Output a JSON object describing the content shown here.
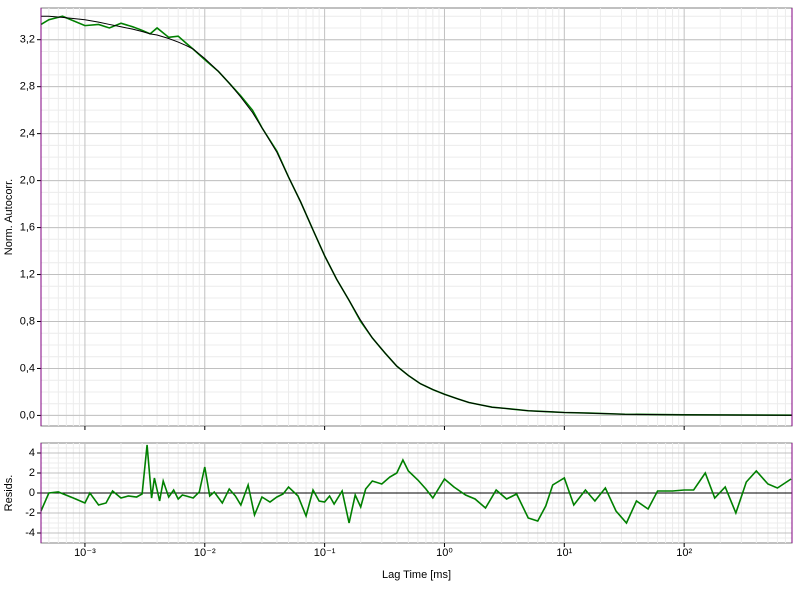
{
  "chart_data": [
    {
      "type": "line",
      "ylabel": "Norm. Autocorr.",
      "xscale": "log",
      "grid": true,
      "xlim": [
        0.00043,
        794
      ],
      "xticks": [
        0.001,
        0.01,
        0.1,
        1,
        10,
        100
      ],
      "ylim": [
        -0.09,
        3.47
      ],
      "yticks": [
        {
          "value": 0,
          "label": "0,0"
        },
        {
          "value": 0.4,
          "label": "0,4"
        },
        {
          "value": 0.8,
          "label": "0,8"
        },
        {
          "value": 1.2,
          "label": "1,2"
        },
        {
          "value": 1.6,
          "label": "1,6"
        },
        {
          "value": 2.0,
          "label": "2,0"
        },
        {
          "value": 2.4,
          "label": "2,4"
        },
        {
          "value": 2.8,
          "label": "2,8"
        },
        {
          "value": 3.2,
          "label": "3,2"
        }
      ],
      "x": [
        0.00043,
        0.0005,
        0.00065,
        0.001,
        0.0013,
        0.0016,
        0.002,
        0.0025,
        0.003,
        0.0035,
        0.004,
        0.005,
        0.006,
        0.007,
        0.008,
        0.01,
        0.013,
        0.016,
        0.02,
        0.025,
        0.03,
        0.04,
        0.05,
        0.063,
        0.08,
        0.1,
        0.126,
        0.16,
        0.2,
        0.25,
        0.32,
        0.4,
        0.5,
        0.63,
        0.8,
        1,
        1.3,
        1.6,
        2,
        2.5,
        3.2,
        4,
        5,
        6.3,
        8,
        10,
        16,
        32,
        100,
        794
      ],
      "series": [
        {
          "color": "#008000",
          "values": [
            3.33,
            3.37,
            3.4,
            3.32,
            3.33,
            3.3,
            3.34,
            3.31,
            3.28,
            3.25,
            3.3,
            3.22,
            3.23,
            3.17,
            3.12,
            3.03,
            2.93,
            2.83,
            2.72,
            2.6,
            2.45,
            2.25,
            2.03,
            1.82,
            1.58,
            1.36,
            1.16,
            0.98,
            0.8,
            0.66,
            0.53,
            0.42,
            0.34,
            0.27,
            0.22,
            0.18,
            0.14,
            0.11,
            0.09,
            0.07,
            0.06,
            0.05,
            0.04,
            0.035,
            0.03,
            0.025,
            0.02,
            0.01,
            0.005,
            0.002
          ]
        },
        {
          "color": "#000000",
          "values": [
            3.4,
            3.4,
            3.39,
            3.37,
            3.35,
            3.33,
            3.31,
            3.29,
            3.27,
            3.25,
            3.24,
            3.21,
            3.18,
            3.15,
            3.12,
            3.04,
            2.93,
            2.83,
            2.71,
            2.58,
            2.45,
            2.24,
            2.03,
            1.82,
            1.58,
            1.36,
            1.16,
            0.98,
            0.81,
            0.66,
            0.53,
            0.42,
            0.34,
            0.27,
            0.22,
            0.18,
            0.14,
            0.11,
            0.09,
            0.07,
            0.06,
            0.05,
            0.04,
            0.035,
            0.03,
            0.025,
            0.02,
            0.01,
            0.005,
            0.002
          ]
        }
      ]
    },
    {
      "type": "line",
      "ylabel": "Resids.",
      "xlabel": "Lag Time [ms]",
      "xscale": "log",
      "grid": true,
      "xlim": [
        0.00043,
        794
      ],
      "xticks": [
        {
          "value": 0.001,
          "label": "10⁻³"
        },
        {
          "value": 0.01,
          "label": "10⁻²"
        },
        {
          "value": 0.1,
          "label": "10⁻¹"
        },
        {
          "value": 1,
          "label": "10⁰"
        },
        {
          "value": 10,
          "label": "10¹"
        },
        {
          "value": 100,
          "label": "10²"
        }
      ],
      "ylim": [
        -5,
        5
      ],
      "yticks": [
        -4,
        -2,
        0,
        2,
        4
      ],
      "x": [
        0.00043,
        0.0005,
        0.0006,
        0.0008,
        0.001,
        0.0011,
        0.0013,
        0.0015,
        0.0017,
        0.002,
        0.0023,
        0.0027,
        0.003,
        0.0033,
        0.0036,
        0.0038,
        0.0042,
        0.0045,
        0.005,
        0.0055,
        0.006,
        0.0065,
        0.007,
        0.008,
        0.009,
        0.01,
        0.011,
        0.012,
        0.014,
        0.016,
        0.018,
        0.02,
        0.023,
        0.026,
        0.03,
        0.035,
        0.04,
        0.045,
        0.05,
        0.06,
        0.07,
        0.08,
        0.09,
        0.1,
        0.11,
        0.12,
        0.14,
        0.16,
        0.18,
        0.2,
        0.22,
        0.25,
        0.3,
        0.35,
        0.4,
        0.45,
        0.5,
        0.6,
        0.7,
        0.8,
        1,
        1.2,
        1.5,
        1.8,
        2.2,
        2.7,
        3.3,
        4,
        5,
        6,
        7,
        8,
        10,
        12,
        15,
        18,
        22,
        27,
        33,
        40,
        50,
        60,
        80,
        100,
        120,
        150,
        180,
        220,
        270,
        330,
        400,
        500,
        600,
        780
      ],
      "series": [
        {
          "color": "#008000",
          "values": [
            -1.8,
            0,
            0.1,
            -0.5,
            -1,
            0,
            -1.2,
            -1,
            0.2,
            -0.5,
            -0.3,
            -0.4,
            -0.1,
            4.8,
            -0.5,
            1.5,
            -0.8,
            1.2,
            -0.4,
            0.3,
            -0.6,
            -0.2,
            -0.3,
            -0.5,
            0.1,
            2.6,
            -0.3,
            0.1,
            -1,
            0.4,
            -0.3,
            -1.2,
            0.8,
            -2.2,
            -0.4,
            -0.9,
            -0.4,
            -0.1,
            0.6,
            -0.3,
            -2.3,
            0.3,
            -0.8,
            -0.9,
            -0.3,
            -1.1,
            0.2,
            -3,
            -0.2,
            -1.4,
            0.4,
            1.2,
            0.9,
            1.6,
            2,
            3.3,
            2.2,
            1.3,
            0.4,
            -0.5,
            1.4,
            0.6,
            -0.2,
            -0.6,
            -1.5,
            0.3,
            -0.6,
            -0.1,
            -2.5,
            -2.8,
            -1.3,
            0.8,
            1.5,
            -1.2,
            0.3,
            -0.8,
            0.5,
            -1.8,
            -3,
            -0.8,
            -1.6,
            0.2,
            0.2,
            0.3,
            0.3,
            2,
            -0.5,
            0.6,
            -2,
            1.1,
            2.2,
            0.9,
            0.5,
            1.4
          ]
        }
      ]
    }
  ]
}
